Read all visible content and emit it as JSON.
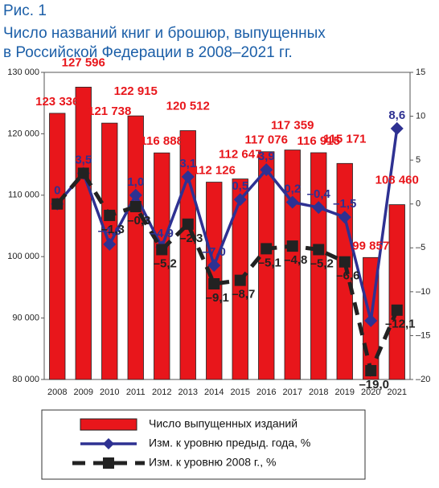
{
  "figure_label": "Рис. 1",
  "chart_data": {
    "type": "bar_line",
    "title": [
      "Число названий книг и брошюр, выпущенных",
      "в Российской Федерации в 2008–2021 гг."
    ],
    "categories": [
      "2008",
      "2009",
      "2010",
      "2011",
      "2012",
      "2013",
      "2014",
      "2015",
      "2016",
      "2017",
      "2018",
      "2019",
      "2020",
      "2021"
    ],
    "ylim": [
      80000,
      130000
    ],
    "yticks": [
      {
        "value": 80000,
        "label": "80 000"
      },
      {
        "value": 90000,
        "label": "90 000"
      },
      {
        "value": 100000,
        "label": "100 000"
      },
      {
        "value": 110000,
        "label": "110 000"
      },
      {
        "value": 120000,
        "label": "120 000"
      },
      {
        "value": 130000,
        "label": "130 000"
      }
    ],
    "y2lim": [
      -20,
      15
    ],
    "y2ticks": [
      {
        "value": -20,
        "label": "–20"
      },
      {
        "value": -15,
        "label": "–15"
      },
      {
        "value": -10,
        "label": "–10"
      },
      {
        "value": -5,
        "label": "–5"
      },
      0,
      5,
      10,
      15
    ],
    "series": [
      {
        "name": "Число выпущенных изданий",
        "kind": "bar",
        "color": "#e8161b",
        "values": [
          123336,
          127596,
          121738,
          122915,
          116888,
          120512,
          112126,
          112647,
          117076,
          117359,
          116915,
          115171,
          99857,
          108460
        ],
        "value_labels": [
          "123 336",
          "127 596",
          "121 738",
          "122 915",
          "116 888",
          "120 512",
          "112 126",
          "112 647",
          "117 076",
          "117 359",
          "116 915",
          "115 171",
          "99 857",
          "108 460"
        ]
      },
      {
        "name": "Изм. к уровню предыд. года, %",
        "kind": "line",
        "axis": "y2",
        "color": "#2e3192",
        "values": [
          0,
          3.5,
          -4.6,
          1.0,
          -4.9,
          3.1,
          -7.0,
          0.5,
          3.9,
          0.2,
          -0.4,
          -1.5,
          -13.3,
          8.6
        ],
        "value_labels": [
          "0",
          "3,5",
          "–4,6",
          "1,0",
          "–4,9",
          "3,1",
          "–7,0",
          "0,5",
          "3,9",
          "0,2",
          "–0,4",
          "–1,5",
          null,
          "8,6"
        ]
      },
      {
        "name": "Изм. к уровню 2008 г., %",
        "kind": "dashed-line",
        "axis": "y2",
        "color": "#222222",
        "values": [
          0,
          3.5,
          -1.3,
          -0.3,
          -5.2,
          -2.3,
          -9.1,
          -8.7,
          -5.1,
          -4.8,
          -5.2,
          -6.6,
          -19.0,
          -12.1
        ],
        "value_labels": [
          null,
          null,
          "–1,3",
          "–0,3",
          "–5,2",
          "–2,3",
          "–9,1",
          "–8,7",
          "–5,1",
          "–4,8",
          "–5,2",
          "–6,6",
          "–19,0",
          "–12,1"
        ]
      }
    ]
  }
}
